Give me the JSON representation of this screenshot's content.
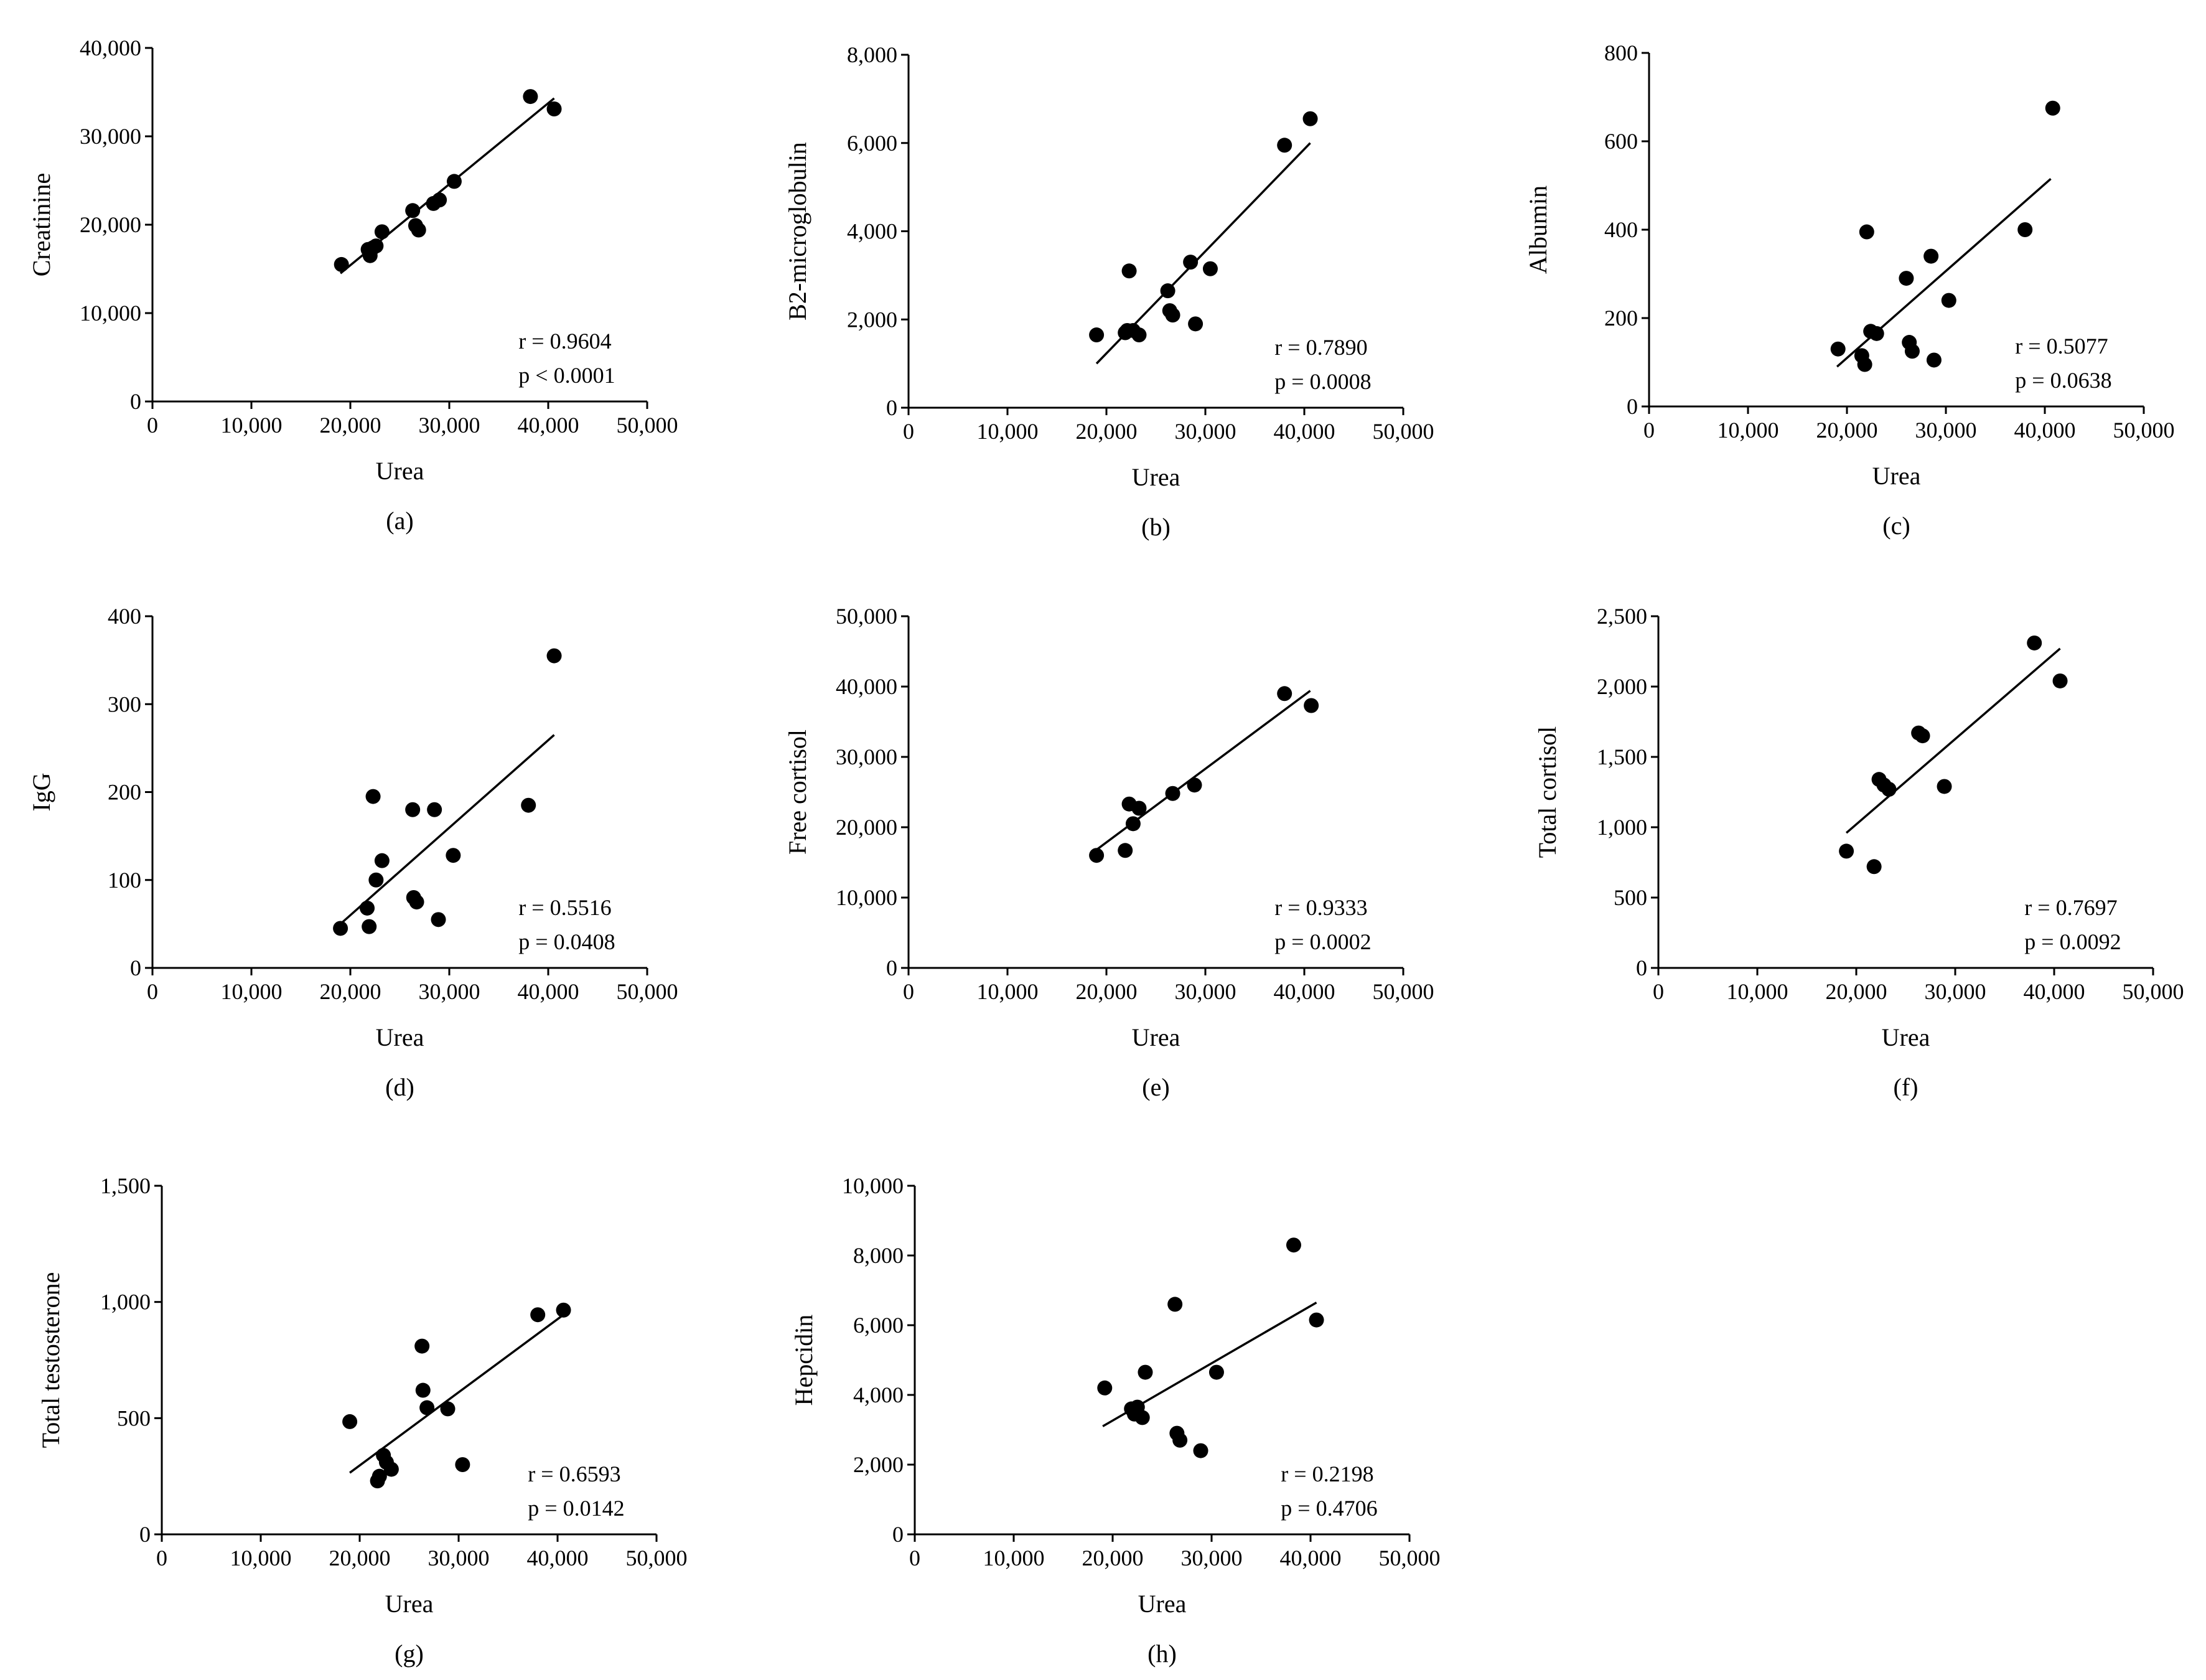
{
  "chart_data": [
    {
      "type": "scatter",
      "panel_label": "(a)",
      "xlabel": "Urea",
      "ylabel": "Creatinine",
      "xlim": [
        0,
        50000
      ],
      "ylim": [
        0,
        40000
      ],
      "xticks": [
        0,
        10000,
        20000,
        30000,
        40000,
        50000
      ],
      "xtick_labels": [
        "0",
        "10,000",
        "20,000",
        "30,000",
        "40,000",
        "50,000"
      ],
      "yticks": [
        0,
        10000,
        20000,
        30000,
        40000
      ],
      "ytick_labels": [
        "0",
        "10,000",
        "20,000",
        "30,000",
        "40,000"
      ],
      "points": [
        [
          19100,
          15500
        ],
        [
          21800,
          17200
        ],
        [
          22000,
          16500
        ],
        [
          22300,
          17400
        ],
        [
          22600,
          17600
        ],
        [
          23200,
          19200
        ],
        [
          26300,
          21600
        ],
        [
          26600,
          19900
        ],
        [
          26900,
          19400
        ],
        [
          28400,
          22400
        ],
        [
          29000,
          22800
        ],
        [
          30500,
          24900
        ],
        [
          38200,
          34500
        ],
        [
          40600,
          33100
        ]
      ],
      "fit": [
        [
          19000,
          14500
        ],
        [
          40600,
          34300
        ]
      ],
      "r_text": "r = 0.9604",
      "p_text": "p < 0.0001"
    },
    {
      "type": "scatter",
      "panel_label": "(b)",
      "xlabel": "Urea",
      "ylabel": "B2-microglobulin",
      "xlim": [
        0,
        50000
      ],
      "ylim": [
        0,
        8000
      ],
      "xticks": [
        0,
        10000,
        20000,
        30000,
        40000,
        50000
      ],
      "xtick_labels": [
        "0",
        "10,000",
        "20,000",
        "30,000",
        "40,000",
        "50,000"
      ],
      "yticks": [
        0,
        2000,
        4000,
        6000,
        8000
      ],
      "ytick_labels": [
        "0",
        "2,000",
        "4,000",
        "6,000",
        "8,000"
      ],
      "points": [
        [
          19000,
          1650
        ],
        [
          21900,
          1700
        ],
        [
          22100,
          1750
        ],
        [
          22300,
          3100
        ],
        [
          22700,
          1750
        ],
        [
          23300,
          1650
        ],
        [
          26200,
          2650
        ],
        [
          26400,
          2200
        ],
        [
          26700,
          2100
        ],
        [
          28500,
          3300
        ],
        [
          29000,
          1900
        ],
        [
          30500,
          3150
        ],
        [
          38000,
          5950
        ],
        [
          40600,
          6550
        ]
      ],
      "fit": [
        [
          19000,
          1000
        ],
        [
          40600,
          6000
        ]
      ],
      "r_text": "r = 0.7890",
      "p_text": "p = 0.0008"
    },
    {
      "type": "scatter",
      "panel_label": "(c)",
      "xlabel": "Urea",
      "ylabel": "Albumin",
      "xlim": [
        0,
        50000
      ],
      "ylim": [
        0,
        800
      ],
      "xticks": [
        0,
        10000,
        20000,
        30000,
        40000,
        50000
      ],
      "xtick_labels": [
        "0",
        "10,000",
        "20,000",
        "30,000",
        "40,000",
        "50,000"
      ],
      "yticks": [
        0,
        200,
        400,
        600,
        800
      ],
      "ytick_labels": [
        "0",
        "200",
        "400",
        "600",
        "800"
      ],
      "points": [
        [
          19100,
          130
        ],
        [
          21500,
          115
        ],
        [
          21800,
          95
        ],
        [
          22000,
          395
        ],
        [
          22400,
          170
        ],
        [
          23000,
          165
        ],
        [
          26000,
          290
        ],
        [
          26300,
          145
        ],
        [
          26600,
          125
        ],
        [
          28500,
          340
        ],
        [
          28800,
          105
        ],
        [
          30300,
          240
        ],
        [
          38000,
          400
        ],
        [
          40800,
          675
        ]
      ],
      "fit": [
        [
          19000,
          90
        ],
        [
          40600,
          515
        ]
      ],
      "r_text": "r = 0.5077",
      "p_text": "p = 0.0638"
    },
    {
      "type": "scatter",
      "panel_label": "(d)",
      "xlabel": "Urea",
      "ylabel": "IgG",
      "xlim": [
        0,
        50000
      ],
      "ylim": [
        0,
        400
      ],
      "xticks": [
        0,
        10000,
        20000,
        30000,
        40000,
        50000
      ],
      "xtick_labels": [
        "0",
        "10,000",
        "20,000",
        "30,000",
        "40,000",
        "50,000"
      ],
      "yticks": [
        0,
        100,
        200,
        300,
        400
      ],
      "ytick_labels": [
        "0",
        "100",
        "200",
        "300",
        "400"
      ],
      "points": [
        [
          19000,
          45
        ],
        [
          21700,
          68
        ],
        [
          21900,
          47
        ],
        [
          22300,
          195
        ],
        [
          22600,
          100
        ],
        [
          23200,
          122
        ],
        [
          26300,
          180
        ],
        [
          26400,
          80
        ],
        [
          26700,
          75
        ],
        [
          28500,
          180
        ],
        [
          28900,
          55
        ],
        [
          30400,
          128
        ],
        [
          38000,
          185
        ],
        [
          40600,
          355
        ]
      ],
      "fit": [
        [
          19000,
          50
        ],
        [
          40600,
          265
        ]
      ],
      "r_text": "r = 0.5516",
      "p_text": "p = 0.0408"
    },
    {
      "type": "scatter",
      "panel_label": "(e)",
      "xlabel": "Urea",
      "ylabel": "Free cortisol",
      "xlim": [
        0,
        50000
      ],
      "ylim": [
        0,
        50000
      ],
      "xticks": [
        0,
        10000,
        20000,
        30000,
        40000,
        50000
      ],
      "xtick_labels": [
        "0",
        "10,000",
        "20,000",
        "30,000",
        "40,000",
        "50,000"
      ],
      "yticks": [
        0,
        10000,
        20000,
        30000,
        40000,
        50000
      ],
      "ytick_labels": [
        "0",
        "10,000",
        "20,000",
        "30,000",
        "40,000",
        "50,000"
      ],
      "points": [
        [
          19000,
          16000
        ],
        [
          21900,
          16700
        ],
        [
          22300,
          23300
        ],
        [
          22700,
          20500
        ],
        [
          23300,
          22700
        ],
        [
          26700,
          24800
        ],
        [
          28900,
          26000
        ],
        [
          38000,
          39000
        ],
        [
          40700,
          37300
        ]
      ],
      "fit": [
        [
          19000,
          16800
        ],
        [
          40600,
          39400
        ]
      ],
      "r_text": "r = 0.9333",
      "p_text": "p = 0.0002"
    },
    {
      "type": "scatter",
      "panel_label": "(f)",
      "xlabel": "Urea",
      "ylabel": "Total cortisol",
      "xlim": [
        0,
        50000
      ],
      "ylim": [
        0,
        2500
      ],
      "xticks": [
        0,
        10000,
        20000,
        30000,
        40000,
        50000
      ],
      "xtick_labels": [
        "0",
        "10,000",
        "20,000",
        "30,000",
        "40,000",
        "50,000"
      ],
      "yticks": [
        0,
        500,
        1000,
        1500,
        2000,
        2500
      ],
      "ytick_labels": [
        "0",
        "500",
        "1,000",
        "1,500",
        "2,000",
        "2,500"
      ],
      "points": [
        [
          19000,
          830
        ],
        [
          21800,
          720
        ],
        [
          22300,
          1340
        ],
        [
          22800,
          1300
        ],
        [
          23300,
          1270
        ],
        [
          26300,
          1670
        ],
        [
          26700,
          1650
        ],
        [
          28900,
          1290
        ],
        [
          38000,
          2310
        ],
        [
          40600,
          2040
        ]
      ],
      "fit": [
        [
          19000,
          960
        ],
        [
          40600,
          2270
        ]
      ],
      "r_text": "r = 0.7697",
      "p_text": "p = 0.0092"
    },
    {
      "type": "scatter",
      "panel_label": "(g)",
      "xlabel": "Urea",
      "ylabel": "Total testosterone",
      "xlim": [
        0,
        50000
      ],
      "ylim": [
        0,
        1500
      ],
      "xticks": [
        0,
        10000,
        20000,
        30000,
        40000,
        50000
      ],
      "xtick_labels": [
        "0",
        "10,000",
        "20,000",
        "30,000",
        "40,000",
        "50,000"
      ],
      "yticks": [
        0,
        500,
        1000,
        1500
      ],
      "ytick_labels": [
        "0",
        "500",
        "1,000",
        "1,500"
      ],
      "points": [
        [
          19000,
          485
        ],
        [
          21800,
          230
        ],
        [
          22000,
          250
        ],
        [
          22400,
          340
        ],
        [
          22700,
          310
        ],
        [
          23200,
          280
        ],
        [
          26300,
          810
        ],
        [
          26400,
          620
        ],
        [
          26800,
          545
        ],
        [
          28900,
          540
        ],
        [
          30400,
          300
        ],
        [
          38000,
          945
        ],
        [
          40600,
          965
        ]
      ],
      "fit": [
        [
          19000,
          265
        ],
        [
          40600,
          945
        ]
      ],
      "r_text": "r = 0.6593",
      "p_text": "p = 0.0142"
    },
    {
      "type": "scatter",
      "panel_label": "(h)",
      "xlabel": "Urea",
      "ylabel": "Hepcidin",
      "xlim": [
        0,
        50000
      ],
      "ylim": [
        0,
        10000
      ],
      "xticks": [
        0,
        10000,
        20000,
        30000,
        40000,
        50000
      ],
      "xtick_labels": [
        "0",
        "10,000",
        "20,000",
        "30,000",
        "40,000",
        "50,000"
      ],
      "yticks": [
        0,
        2000,
        4000,
        6000,
        8000,
        10000
      ],
      "ytick_labels": [
        "0",
        "2,000",
        "4,000",
        "6,000",
        "8,000",
        "10,000"
      ],
      "points": [
        [
          19200,
          4200
        ],
        [
          21900,
          3600
        ],
        [
          22200,
          3450
        ],
        [
          22500,
          3650
        ],
        [
          23000,
          3350
        ],
        [
          23300,
          4650
        ],
        [
          26300,
          6600
        ],
        [
          26500,
          2900
        ],
        [
          26800,
          2700
        ],
        [
          28900,
          2400
        ],
        [
          30500,
          4650
        ],
        [
          38300,
          8300
        ],
        [
          40600,
          6150
        ]
      ],
      "fit": [
        [
          19000,
          3100
        ],
        [
          40600,
          6650
        ]
      ],
      "r_text": "r = 0.2198",
      "p_text": "p = 0.4706"
    }
  ]
}
